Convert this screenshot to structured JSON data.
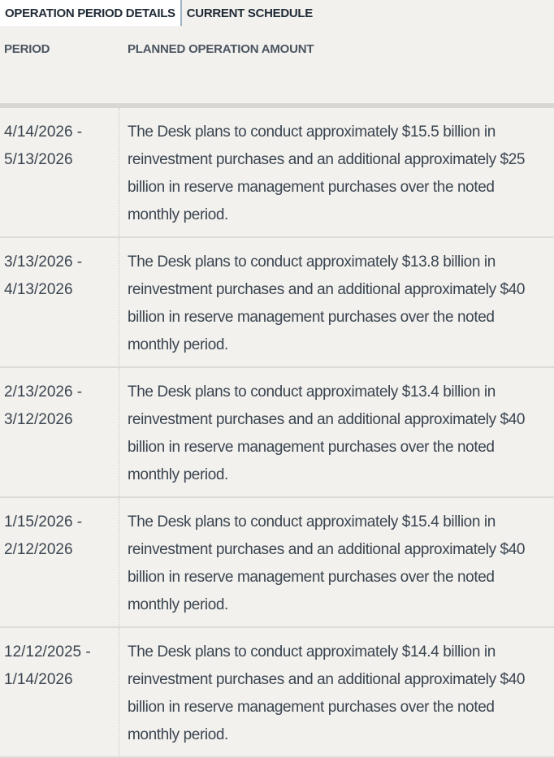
{
  "tabs": [
    "OPERATION PERIOD DETAILS",
    "CURRENT SCHEDULE"
  ],
  "table": {
    "headers": [
      "PERIOD",
      "PLANNED OPERATION AMOUNT"
    ],
    "rows": [
      [
        "4/14/2026 - 5/13/2026",
        "The Desk plans to conduct approximately $15.5 billion in reinvestment purchases and an additional approximately $25 billion in reserve management purchases over the noted monthly period."
      ],
      [
        "3/13/2026 - 4/13/2026",
        "The Desk plans to conduct approximately $13.8 billion in reinvestment purchases and an additional approximately $40 billion in reserve management purchases over the noted monthly period."
      ],
      [
        "2/13/2026 - 3/12/2026",
        "The Desk plans to conduct approximately $13.4 billion in reinvestment purchases and an additional approximately $40 billion in reserve management purchases over the noted monthly period."
      ],
      [
        "1/15/2026 - 2/12/2026",
        "The Desk plans to conduct approximately $15.4 billion in reinvestment purchases and an additional approximately $40 billion in reserve management purchases over the noted monthly period."
      ],
      [
        "12/12/2025 - 1/14/2026",
        "The Desk plans to conduct approximately $14.4 billion in reinvestment purchases and an additional approximately $40 billion in reserve management purchases over the noted monthly period."
      ]
    ]
  }
}
